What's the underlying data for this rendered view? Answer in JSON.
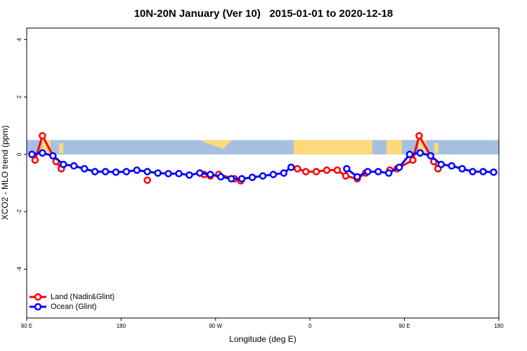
{
  "chart_data": {
    "type": "line",
    "title": "10N-20N January (Ver 10)   2015-01-01 to 2020-12-18",
    "x_label": "Longitude (deg E)",
    "y_label": "XCO2 - MLO trend (ppm)",
    "xlim": [
      90,
      540
    ],
    "xticks": [
      {
        "value": 90,
        "label": "90 E"
      },
      {
        "value": 180,
        "label": "180"
      },
      {
        "value": 270,
        "label": "90 W"
      },
      {
        "value": 360,
        "label": "0"
      },
      {
        "value": 450,
        "label": "90 E"
      },
      {
        "value": 540,
        "label": "180"
      }
    ],
    "ylim": [
      -5.7,
      4.4
    ],
    "yticks": [
      -4,
      -2,
      0,
      2,
      4
    ],
    "legend": "bottom-left",
    "series": [
      {
        "name": "Land (Nadir&Glint)",
        "color": "#ff0000",
        "x": [
          98,
          105,
          118,
          123,
          160,
          205,
          230,
          259,
          265,
          273,
          288,
          294,
          320,
          348,
          356,
          366,
          376,
          386,
          394,
          405,
          413,
          425,
          436,
          443,
          458,
          464,
          478,
          482
        ],
        "values": [
          -0.2,
          0.65,
          -0.25,
          -0.5,
          null,
          -0.9,
          null,
          -0.7,
          -0.75,
          -0.7,
          -0.85,
          -0.92,
          null,
          -0.5,
          -0.6,
          -0.6,
          -0.55,
          -0.55,
          -0.75,
          -0.85,
          -0.65,
          null,
          -0.55,
          -0.5,
          -0.2,
          0.65,
          -0.25,
          -0.5
        ]
      },
      {
        "name": "Ocean (Glint)",
        "color": "#0000ff",
        "x": [
          95,
          105,
          115,
          125,
          135,
          145,
          155,
          165,
          175,
          185,
          195,
          205,
          215,
          225,
          235,
          245,
          255,
          265,
          275,
          285,
          295,
          305,
          315,
          325,
          335,
          342,
          370,
          395,
          405,
          415,
          425,
          435,
          445,
          455,
          465,
          475,
          485,
          495,
          505,
          515,
          525,
          535
        ],
        "values": [
          0.0,
          0.05,
          -0.05,
          -0.35,
          -0.4,
          -0.5,
          -0.6,
          -0.6,
          -0.62,
          -0.6,
          -0.55,
          -0.6,
          -0.65,
          -0.67,
          -0.67,
          -0.72,
          -0.65,
          -0.7,
          -0.78,
          -0.85,
          -0.85,
          -0.8,
          -0.75,
          -0.7,
          -0.65,
          -0.45,
          null,
          -0.5,
          -0.78,
          -0.6,
          -0.6,
          -0.65,
          -0.45,
          0.0,
          0.05,
          -0.05,
          -0.35,
          -0.4,
          -0.5,
          -0.6,
          -0.6,
          -0.62
        ]
      }
    ]
  }
}
